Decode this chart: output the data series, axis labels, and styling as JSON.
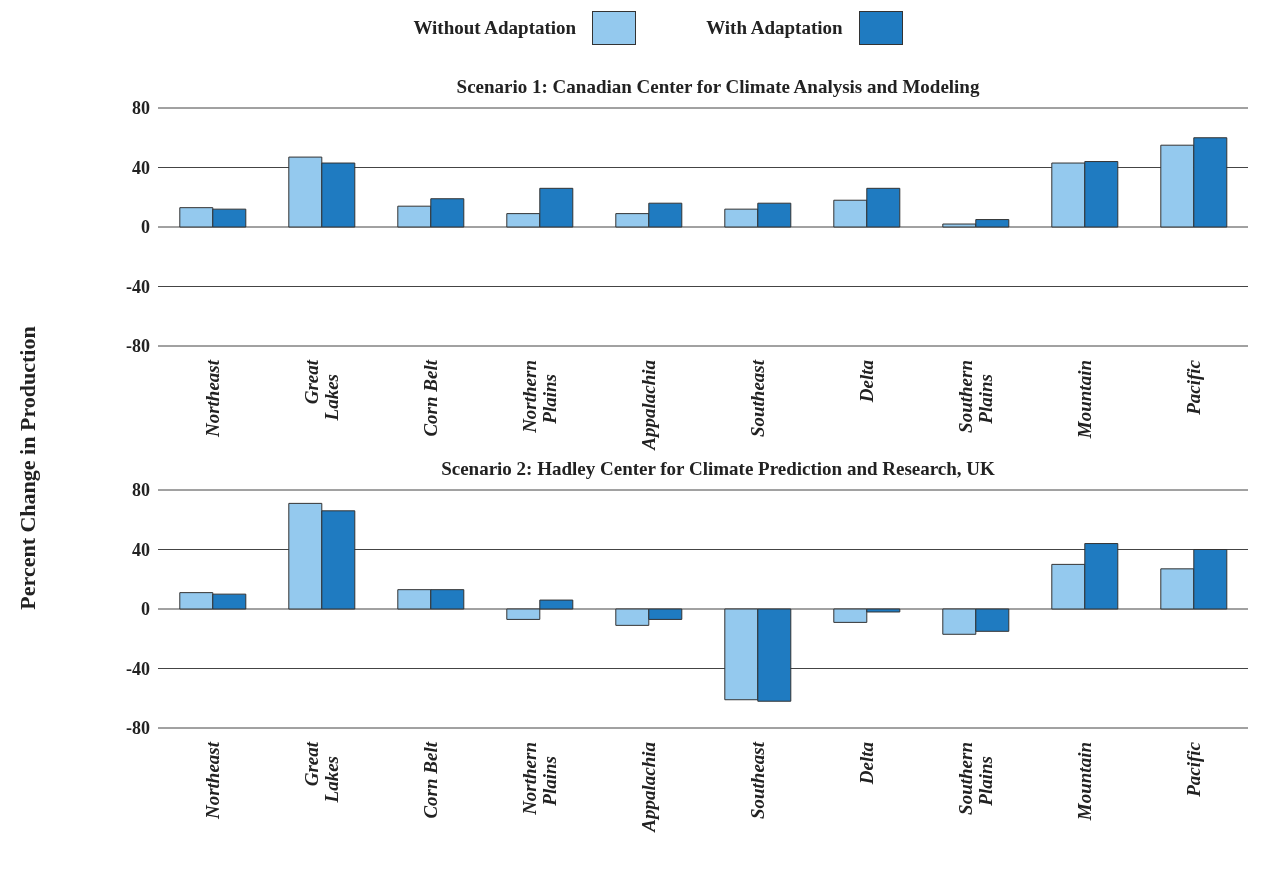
{
  "chart_data": [
    {
      "type": "bar",
      "title": "Scenario 1: Canadian Center for Climate Analysis and Modeling",
      "ylabel": "Percent Change in Production",
      "categories": [
        "Northeast",
        "Great Lakes",
        "Corn Belt",
        "Northern Plains",
        "Appalachia",
        "Southeast",
        "Delta",
        "Southern Plains",
        "Mountain",
        "Pacific"
      ],
      "series": [
        {
          "name": "Without Adaptation",
          "color": "#94c9ee",
          "values": [
            13,
            47,
            14,
            9,
            9,
            12,
            18,
            2,
            43,
            55
          ]
        },
        {
          "name": "With Adaptation",
          "color": "#1f7bc1",
          "values": [
            12,
            43,
            19,
            26,
            16,
            16,
            26,
            5,
            44,
            60
          ]
        }
      ],
      "ylim": [
        -80,
        80
      ],
      "yticks": [
        -80,
        -40,
        0,
        40,
        80
      ],
      "grid": "y",
      "legend": "top"
    },
    {
      "type": "bar",
      "title": "Scenario 2: Hadley Center for Climate Prediction and Research, UK",
      "categories": [
        "Northeast",
        "Great Lakes",
        "Corn Belt",
        "Northern Plains",
        "Appalachia",
        "Southeast",
        "Delta",
        "Southern Plains",
        "Mountain",
        "Pacific"
      ],
      "series": [
        {
          "color": "#94c9ee",
          "values": [
            11,
            71,
            13,
            -7,
            -11,
            -61,
            -9,
            -17,
            30,
            27
          ]
        },
        {
          "color": "#1f7bc1",
          "values": [
            10,
            66,
            13,
            6,
            -7,
            -62,
            -2,
            -15,
            44,
            40
          ]
        }
      ],
      "ylim": [
        -80,
        80
      ],
      "yticks": [
        -80,
        -40,
        0,
        40,
        80
      ],
      "grid": "y"
    }
  ]
}
